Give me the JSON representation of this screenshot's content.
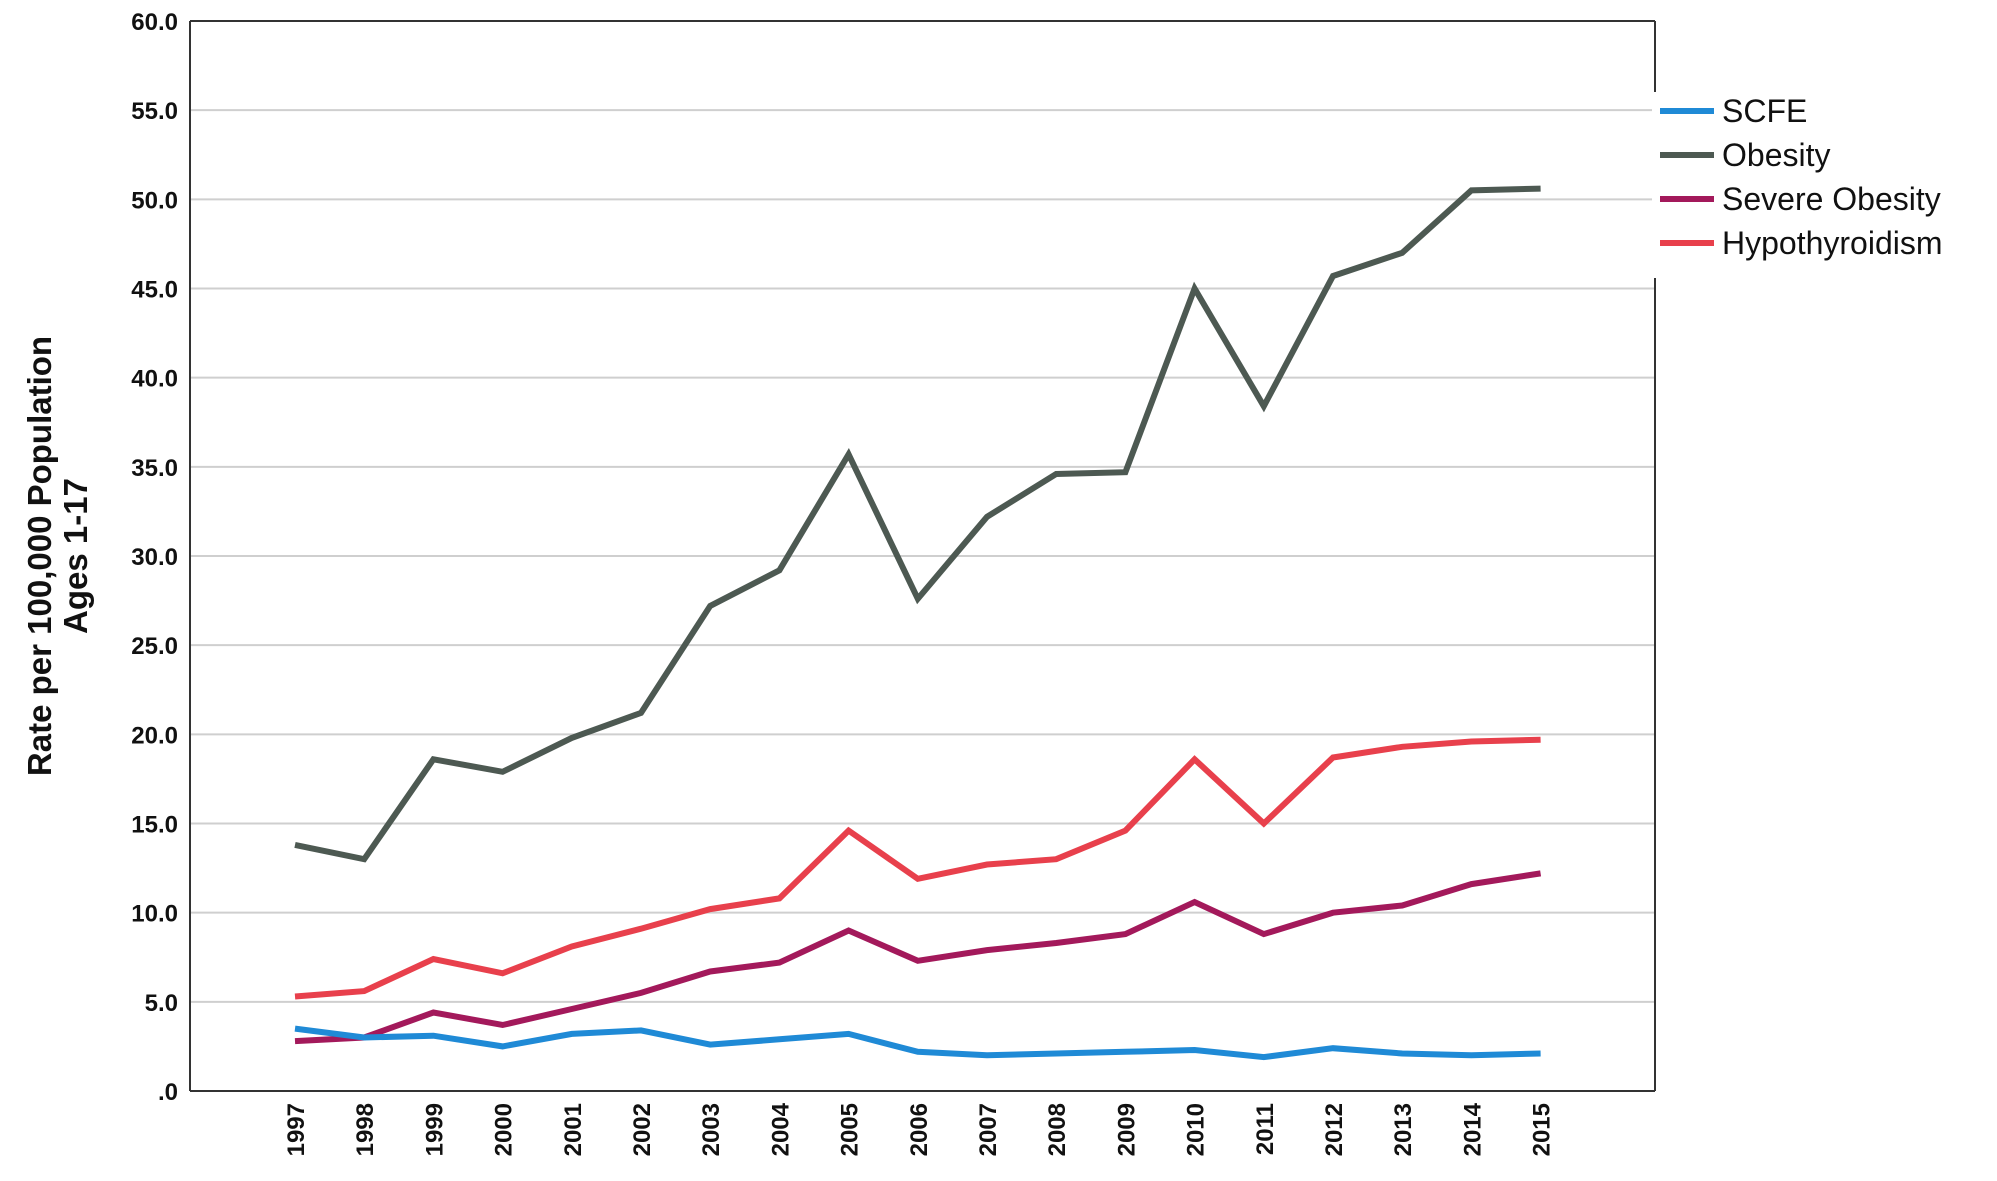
{
  "chart_data": {
    "type": "line",
    "title": "",
    "xlabel": "",
    "ylabel_lines": [
      "Rate per 100,000 Population",
      "Ages 1-17"
    ],
    "x": [
      "1997",
      "1998",
      "1999",
      "2000",
      "2001",
      "2002",
      "2003",
      "2004",
      "2005",
      "2006",
      "2007",
      "2008",
      "2009",
      "2010",
      "2011",
      "2012",
      "2013",
      "2014",
      "2015"
    ],
    "y_ticks": [
      ".0",
      "5.0",
      "10.0",
      "15.0",
      "20.0",
      "25.0",
      "30.0",
      "35.0",
      "40.0",
      "45.0",
      "50.0",
      "55.0",
      "60.0"
    ],
    "ylim": [
      0,
      60
    ],
    "grid": true,
    "legend_position": "right",
    "series": [
      {
        "name": "SCFE",
        "color": "#1f8ad6",
        "values": [
          3.5,
          3.0,
          3.1,
          2.5,
          3.2,
          3.4,
          2.6,
          2.9,
          3.2,
          2.2,
          2.0,
          2.1,
          2.2,
          2.3,
          1.9,
          2.4,
          2.1,
          2.0,
          2.1
        ]
      },
      {
        "name": "Obesity",
        "color": "#4d5952",
        "values": [
          13.8,
          13.0,
          18.6,
          17.9,
          19.8,
          21.2,
          27.2,
          29.2,
          35.7,
          27.6,
          32.2,
          34.6,
          34.7,
          45.0,
          38.4,
          45.7,
          47.0,
          50.5,
          50.6
        ]
      },
      {
        "name": "Severe Obesity",
        "color": "#a3195b",
        "values": [
          2.8,
          3.0,
          4.4,
          3.7,
          4.6,
          5.5,
          6.7,
          7.2,
          9.0,
          7.3,
          7.9,
          8.3,
          8.8,
          10.6,
          8.8,
          10.0,
          10.4,
          11.6,
          12.2
        ]
      },
      {
        "name": "Hypothyroidism",
        "color": "#e8404c",
        "values": [
          5.3,
          5.6,
          7.4,
          6.6,
          8.1,
          9.1,
          10.2,
          10.8,
          14.6,
          11.9,
          12.7,
          13.0,
          14.6,
          18.6,
          15.0,
          18.7,
          19.3,
          19.6,
          19.7
        ]
      }
    ]
  }
}
